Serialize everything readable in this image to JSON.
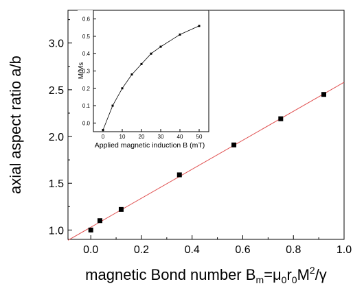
{
  "chart_data": [
    {
      "type": "scatter",
      "xlabel_main": "magnetic Bond number B",
      "xlabel_sub1": "m",
      "xlabel_mid1": "=μ",
      "xlabel_sub2": "0",
      "xlabel_mid2": "r",
      "xlabel_sub3": "0",
      "xlabel_mid3": "M",
      "xlabel_sup": "2",
      "xlabel_end": "/γ",
      "ylabel": "axial aspect ratio a/b",
      "xlim": [
        -0.09,
        1.0
      ],
      "ylim": [
        0.9,
        3.35
      ],
      "xticks": [
        0.0,
        0.2,
        0.4,
        0.6,
        0.8,
        1.0
      ],
      "xtick_labels": [
        "0.0",
        "0.2",
        "0.4",
        "0.6",
        "0.8",
        "1.0"
      ],
      "yticks": [
        1.0,
        1.5,
        2.0,
        2.5,
        3.0
      ],
      "ytick_labels": [
        "1.0",
        "1.5",
        "2.0",
        "2.5",
        "3.0"
      ],
      "x": [
        0.0,
        0.036,
        0.12,
        0.35,
        0.565,
        0.75,
        0.92
      ],
      "y": [
        1.0,
        1.1,
        1.22,
        1.59,
        1.91,
        2.19,
        2.45
      ],
      "fit_line": {
        "x": [
          -0.09,
          1.0
        ],
        "y": [
          0.89,
          2.58
        ],
        "color": "#e05050"
      },
      "marker_color": "#000000"
    },
    {
      "type": "line",
      "xlabel": "Applied magnetic induction B (mT)",
      "ylabel": "M/Ms",
      "xlim": [
        -5,
        55
      ],
      "ylim": [
        -0.05,
        0.65
      ],
      "xticks": [
        0,
        10,
        20,
        30,
        40,
        50
      ],
      "xtick_labels": [
        "0",
        "10",
        "20",
        "30",
        "40",
        "50"
      ],
      "yticks": [
        0.0,
        0.1,
        0.2,
        0.3,
        0.4,
        0.5,
        0.6
      ],
      "ytick_labels": [
        "0.0",
        "0.1",
        "0.2",
        "0.3",
        "0.4",
        "0.5",
        "0.6"
      ],
      "x": [
        0,
        5,
        10,
        15,
        20,
        25,
        30,
        40,
        50
      ],
      "y": [
        -0.04,
        0.1,
        0.2,
        0.28,
        0.34,
        0.4,
        0.44,
        0.51,
        0.56
      ],
      "line_color": "#000000"
    }
  ]
}
